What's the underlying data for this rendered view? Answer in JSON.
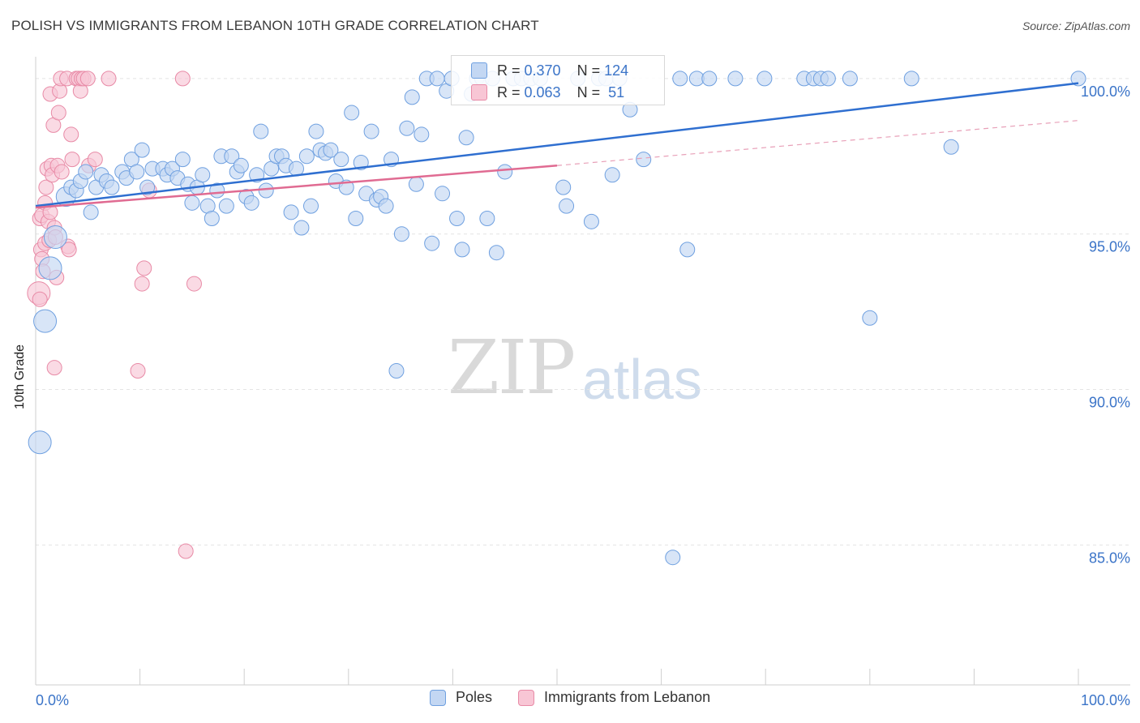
{
  "title": "POLISH VS IMMIGRANTS FROM LEBANON 10TH GRADE CORRELATION CHART",
  "source": "Source: ZipAtlas.com",
  "watermark": {
    "zip": "ZIP",
    "atlas": "atlas"
  },
  "legend_stats": [
    {
      "r_label": "R = ",
      "r_value": "0.370",
      "n_label": "N = ",
      "n_value": "124",
      "color": "#6fa0e0",
      "fill": "#c3d7f3"
    },
    {
      "r_label": "R = ",
      "r_value": "0.063",
      "n_label": "N = ",
      "n_value": " 51",
      "color": "#e88aa6",
      "fill": "#f8c6d5"
    }
  ],
  "legend_bottom": [
    {
      "label": "Poles",
      "color": "#6fa0e0",
      "fill": "#c3d7f3"
    },
    {
      "label": "Immigrants from Lebanon",
      "color": "#e88aa6",
      "fill": "#f8c6d5"
    }
  ],
  "chart_data": {
    "type": "scatter",
    "xlabel": "",
    "ylabel": "10th Grade",
    "xlim": [
      0,
      100
    ],
    "ylim": [
      80.5,
      100.7
    ],
    "x_tick_labels": {
      "left": "0.0%",
      "right": "100.0%"
    },
    "y_ticks": [
      {
        "value": 100,
        "label": "100.0%"
      },
      {
        "value": 95,
        "label": "95.0%"
      },
      {
        "value": 90,
        "label": "90.0%"
      },
      {
        "value": 85,
        "label": "85.0%"
      }
    ],
    "grid": true,
    "series": [
      {
        "name": "Poles",
        "color": "#6fa0e0",
        "fill": "#c3d7f3",
        "trend": {
          "x0": 0,
          "y0": 95.9,
          "x1": 100,
          "y1": 99.85
        },
        "points": [
          [
            0.4,
            88.3,
            14
          ],
          [
            0.9,
            92.2,
            14
          ],
          [
            1.4,
            93.9,
            14
          ],
          [
            1.9,
            94.9,
            14
          ],
          [
            2.9,
            96.2,
            12
          ],
          [
            3.4,
            96.5,
            9
          ],
          [
            3.9,
            96.4,
            9
          ],
          [
            4.3,
            96.7,
            9
          ],
          [
            4.8,
            97.0,
            9
          ],
          [
            5.3,
            95.7,
            9
          ],
          [
            5.8,
            96.5,
            9
          ],
          [
            6.3,
            96.9,
            9
          ],
          [
            6.8,
            96.7,
            9
          ],
          [
            7.3,
            96.5,
            9
          ],
          [
            8.3,
            97.0,
            9
          ],
          [
            8.7,
            96.8,
            9
          ],
          [
            9.2,
            97.4,
            9
          ],
          [
            9.7,
            97.0,
            9
          ],
          [
            10.2,
            97.7,
            9
          ],
          [
            10.7,
            96.5,
            9
          ],
          [
            11.2,
            97.1,
            9
          ],
          [
            12.2,
            97.1,
            9
          ],
          [
            12.6,
            96.9,
            9
          ],
          [
            13.1,
            97.1,
            9
          ],
          [
            13.6,
            96.8,
            9
          ],
          [
            14.1,
            97.4,
            9
          ],
          [
            14.6,
            96.6,
            9
          ],
          [
            15.0,
            96.0,
            9
          ],
          [
            15.5,
            96.5,
            9
          ],
          [
            16.0,
            96.9,
            9
          ],
          [
            16.5,
            95.9,
            9
          ],
          [
            16.9,
            95.5,
            9
          ],
          [
            17.4,
            96.4,
            9
          ],
          [
            17.8,
            97.5,
            9
          ],
          [
            18.3,
            95.9,
            9
          ],
          [
            18.8,
            97.5,
            9
          ],
          [
            19.3,
            97.0,
            9
          ],
          [
            19.7,
            97.2,
            9
          ],
          [
            20.2,
            96.2,
            9
          ],
          [
            20.7,
            96.0,
            9
          ],
          [
            21.2,
            96.9,
            9
          ],
          [
            21.6,
            98.3,
            9
          ],
          [
            22.1,
            96.4,
            9
          ],
          [
            22.6,
            97.1,
            9
          ],
          [
            23.1,
            97.5,
            9
          ],
          [
            23.6,
            97.5,
            9
          ],
          [
            24.0,
            97.2,
            9
          ],
          [
            24.5,
            95.7,
            9
          ],
          [
            25.0,
            97.1,
            9
          ],
          [
            25.5,
            95.2,
            9
          ],
          [
            26.0,
            97.5,
            9
          ],
          [
            26.4,
            95.9,
            9
          ],
          [
            26.9,
            98.3,
            9
          ],
          [
            27.3,
            97.7,
            9
          ],
          [
            27.8,
            97.6,
            9
          ],
          [
            28.3,
            97.7,
            9
          ],
          [
            28.8,
            96.7,
            9
          ],
          [
            29.3,
            97.4,
            9
          ],
          [
            29.8,
            96.5,
            9
          ],
          [
            30.3,
            98.9,
            9
          ],
          [
            30.7,
            95.5,
            9
          ],
          [
            31.2,
            97.3,
            9
          ],
          [
            31.7,
            96.3,
            9
          ],
          [
            32.2,
            98.3,
            9
          ],
          [
            32.7,
            96.1,
            9
          ],
          [
            33.1,
            96.2,
            9
          ],
          [
            33.6,
            95.9,
            9
          ],
          [
            34.1,
            97.4,
            9
          ],
          [
            34.6,
            90.6,
            9
          ],
          [
            35.1,
            95.0,
            9
          ],
          [
            35.6,
            98.4,
            9
          ],
          [
            36.1,
            99.4,
            9
          ],
          [
            36.5,
            96.6,
            9
          ],
          [
            37.0,
            98.2,
            9
          ],
          [
            37.5,
            100.0,
            9
          ],
          [
            38.0,
            94.7,
            9
          ],
          [
            38.5,
            100.0,
            9
          ],
          [
            39.0,
            96.3,
            9
          ],
          [
            39.4,
            99.6,
            9
          ],
          [
            39.9,
            100.0,
            9
          ],
          [
            40.4,
            95.5,
            9
          ],
          [
            40.9,
            94.5,
            9
          ],
          [
            41.3,
            98.1,
            9
          ],
          [
            41.8,
            99.5,
            9
          ],
          [
            42.3,
            100.0,
            9
          ],
          [
            42.8,
            100.0,
            9
          ],
          [
            43.3,
            95.5,
            9
          ],
          [
            43.8,
            100.0,
            9
          ],
          [
            44.2,
            94.4,
            9
          ],
          [
            45.0,
            97.0,
            9
          ],
          [
            45.8,
            100.0,
            9
          ],
          [
            46.6,
            100.0,
            9
          ],
          [
            47.5,
            100.0,
            9
          ],
          [
            48.4,
            100.0,
            9
          ],
          [
            50.6,
            96.5,
            9
          ],
          [
            50.9,
            95.9,
            9
          ],
          [
            52.0,
            100.0,
            9
          ],
          [
            53.3,
            95.4,
            9
          ],
          [
            54.0,
            100.0,
            9
          ],
          [
            54.7,
            100.0,
            9
          ],
          [
            55.3,
            96.9,
            9
          ],
          [
            56.0,
            100.0,
            9
          ],
          [
            57.0,
            99.0,
            9
          ],
          [
            58.3,
            97.4,
            9
          ],
          [
            61.1,
            84.6,
            9
          ],
          [
            61.8,
            100.0,
            9
          ],
          [
            62.5,
            94.5,
            9
          ],
          [
            63.4,
            100.0,
            9
          ],
          [
            64.6,
            100.0,
            9
          ],
          [
            67.1,
            100.0,
            9
          ],
          [
            69.9,
            100.0,
            9
          ],
          [
            73.7,
            100.0,
            9
          ],
          [
            74.6,
            100.0,
            9
          ],
          [
            75.3,
            100.0,
            9
          ],
          [
            76.0,
            100.0,
            9
          ],
          [
            78.1,
            100.0,
            9
          ],
          [
            80.0,
            92.3,
            9
          ],
          [
            84.0,
            100.0,
            9
          ],
          [
            87.8,
            97.8,
            9
          ],
          [
            100.0,
            100.0,
            9
          ]
        ]
      },
      {
        "name": "Immigrants from Lebanon",
        "color": "#e88aa6",
        "fill": "#f8c6d5",
        "trend": {
          "x0": 0,
          "y0": 95.85,
          "x1": 50,
          "y1": 97.2
        },
        "trend_extension": {
          "x0": 50,
          "y0": 97.2,
          "x1": 100,
          "y1": 98.65
        },
        "points": [
          [
            0.3,
            93.1,
            14
          ],
          [
            0.4,
            92.9,
            9
          ],
          [
            0.4,
            95.5,
            9
          ],
          [
            0.5,
            94.5,
            9
          ],
          [
            0.6,
            95.6,
            9
          ],
          [
            0.6,
            94.2,
            9
          ],
          [
            0.7,
            93.8,
            9
          ],
          [
            0.9,
            94.7,
            9
          ],
          [
            0.9,
            96.0,
            9
          ],
          [
            1.0,
            96.5,
            9
          ],
          [
            1.1,
            97.1,
            9
          ],
          [
            1.2,
            95.4,
            9
          ],
          [
            1.3,
            94.8,
            9
          ],
          [
            1.4,
            95.7,
            9
          ],
          [
            1.4,
            99.5,
            9
          ],
          [
            1.5,
            97.2,
            9
          ],
          [
            1.6,
            96.9,
            9
          ],
          [
            1.7,
            98.5,
            9
          ],
          [
            1.8,
            95.2,
            9
          ],
          [
            1.8,
            90.7,
            9
          ],
          [
            1.9,
            94.9,
            9
          ],
          [
            2.0,
            93.6,
            9
          ],
          [
            2.1,
            97.2,
            9
          ],
          [
            2.2,
            98.9,
            9
          ],
          [
            2.3,
            99.6,
            9
          ],
          [
            2.4,
            100.0,
            9
          ],
          [
            2.5,
            97.0,
            9
          ],
          [
            3.0,
            100.0,
            9
          ],
          [
            3.1,
            94.6,
            9
          ],
          [
            3.2,
            94.5,
            9
          ],
          [
            3.4,
            98.2,
            9
          ],
          [
            3.5,
            97.4,
            9
          ],
          [
            3.9,
            100.0,
            9
          ],
          [
            4.1,
            100.0,
            9
          ],
          [
            4.3,
            99.6,
            9
          ],
          [
            4.4,
            100.0,
            9
          ],
          [
            4.6,
            100.0,
            9
          ],
          [
            5.0,
            100.0,
            9
          ],
          [
            5.1,
            97.2,
            9
          ],
          [
            5.7,
            97.4,
            9
          ],
          [
            7.0,
            100.0,
            9
          ],
          [
            9.8,
            90.6,
            9
          ],
          [
            10.2,
            93.4,
            9
          ],
          [
            10.4,
            93.9,
            9
          ],
          [
            10.9,
            96.4,
            9
          ],
          [
            14.1,
            100.0,
            9
          ],
          [
            14.4,
            84.8,
            9
          ],
          [
            15.2,
            93.4,
            9
          ]
        ]
      }
    ]
  }
}
